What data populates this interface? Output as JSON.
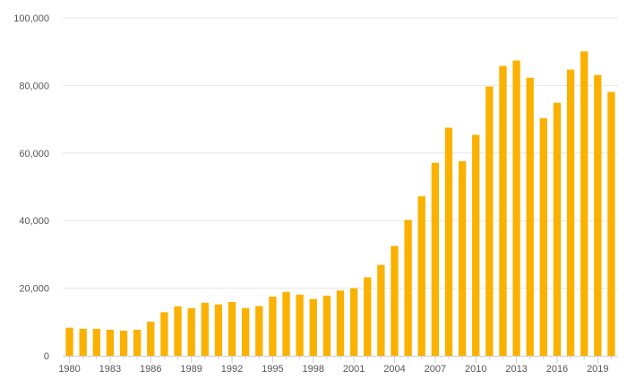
{
  "chart_data": {
    "type": "bar",
    "title": "",
    "xlabel": "",
    "ylabel": "",
    "bar_color": "#FBB100",
    "grid": true,
    "ylim": [
      0,
      100000
    ],
    "y_ticks": [
      0,
      20000,
      40000,
      60000,
      80000,
      100000
    ],
    "y_tick_labels": [
      "0",
      "20,000",
      "40,000",
      "60,000",
      "80,000",
      "100,000"
    ],
    "x_tick_labels": [
      "1980",
      "1983",
      "1986",
      "1989",
      "1992",
      "1995",
      "1998",
      "2001",
      "2004",
      "2007",
      "2010",
      "2013",
      "2016",
      "2019"
    ],
    "categories": [
      "1980",
      "1981",
      "1982",
      "1983",
      "1984",
      "1985",
      "1986",
      "1987",
      "1988",
      "1989",
      "1990",
      "1991",
      "1992",
      "1993",
      "1994",
      "1995",
      "1996",
      "1997",
      "1998",
      "1999",
      "2000",
      "2001",
      "2002",
      "2003",
      "2004",
      "2005",
      "2006",
      "2007",
      "2008",
      "2009",
      "2010",
      "2011",
      "2012",
      "2013",
      "2014",
      "2015",
      "2016",
      "2017",
      "2018",
      "2019",
      "2020"
    ],
    "values": [
      8300,
      8000,
      8000,
      7700,
      7400,
      7700,
      10100,
      12900,
      14600,
      14100,
      15700,
      15200,
      15900,
      14100,
      14700,
      17500,
      18900,
      18100,
      16800,
      17800,
      19300,
      20000,
      23200,
      26900,
      32500,
      40200,
      47200,
      57100,
      67500,
      57600,
      65400,
      79700,
      85800,
      87400,
      82300,
      70300,
      74900,
      84700,
      90100,
      83100,
      78100
    ]
  }
}
